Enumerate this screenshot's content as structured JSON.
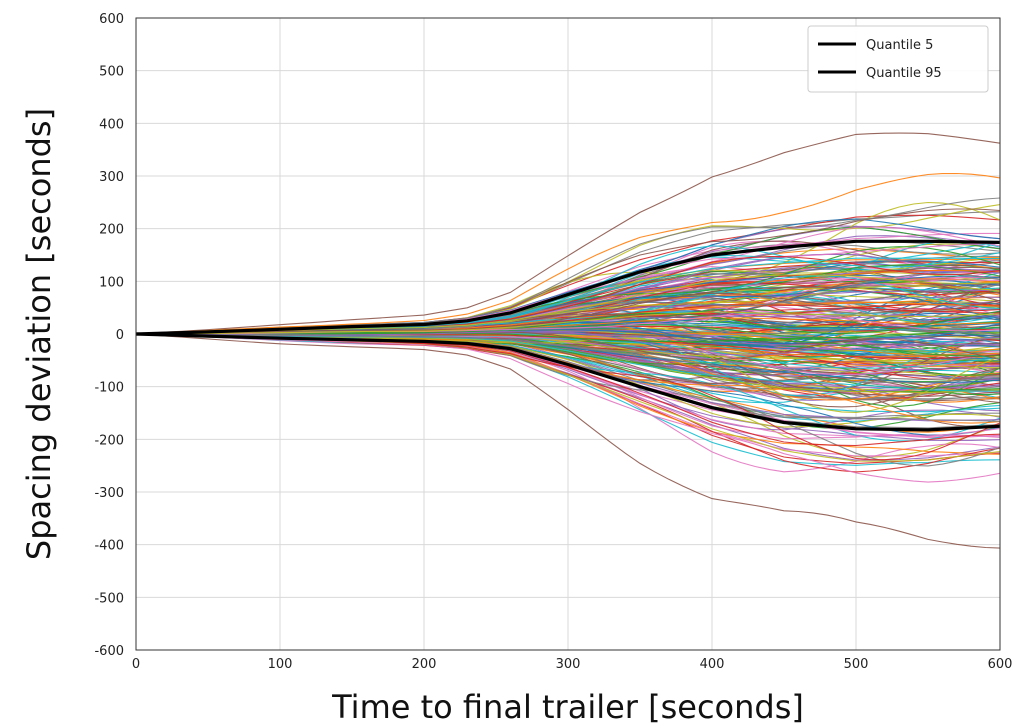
{
  "chart_data": {
    "type": "line",
    "title": "",
    "xlabel": "Time to final trailer [seconds]",
    "ylabel": "Spacing deviation [seconds]",
    "xlim": [
      0,
      600
    ],
    "ylim": [
      -600,
      600
    ],
    "xticks": [
      0,
      100,
      200,
      300,
      400,
      500,
      600
    ],
    "yticks": [
      600,
      500,
      400,
      300,
      200,
      100,
      0,
      -100,
      -200,
      -300,
      -400,
      -500,
      -600
    ],
    "grid": true,
    "legend_position": "top-right",
    "series": [
      {
        "name": "Quantile 5",
        "color": "#000000",
        "x": [
          0,
          50,
          100,
          150,
          200,
          230,
          260,
          300,
          350,
          400,
          450,
          500,
          550,
          600
        ],
        "y": [
          0,
          -4,
          -8,
          -11,
          -14,
          -18,
          -28,
          -58,
          -100,
          -140,
          -168,
          -180,
          -182,
          -175
        ]
      },
      {
        "name": "Quantile 95",
        "color": "#000000",
        "x": [
          0,
          50,
          100,
          150,
          200,
          230,
          260,
          300,
          350,
          400,
          450,
          500,
          550,
          600
        ],
        "y": [
          0,
          4,
          9,
          14,
          18,
          25,
          40,
          75,
          118,
          150,
          165,
          176,
          176,
          174
        ]
      }
    ],
    "background_trajectories": {
      "description_count": 300,
      "colors": [
        "#1f77b4",
        "#ff7f0e",
        "#2ca02c",
        "#d62728",
        "#9467bd",
        "#8c564b",
        "#e377c2",
        "#7f7f7f",
        "#bcbd22",
        "#17becf"
      ]
    }
  }
}
